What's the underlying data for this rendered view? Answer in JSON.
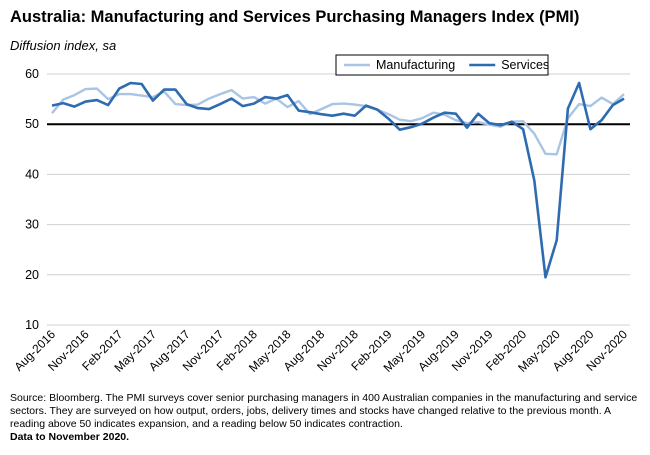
{
  "chart_data": {
    "type": "line",
    "title": "Australia:  Manufacturing and Services Purchasing Managers Index (PMI)",
    "subtitle": "Diffusion index, sa",
    "categories": [
      "Aug-2016",
      null,
      null,
      "Nov-2016",
      null,
      null,
      "Feb-2017",
      null,
      null,
      "May-2017",
      null,
      null,
      "Aug-2017",
      null,
      null,
      "Nov-2017",
      null,
      null,
      "Feb-2018",
      null,
      null,
      "May-2018",
      null,
      null,
      "Aug-2018",
      null,
      null,
      "Nov-2018",
      null,
      null,
      "Feb-2019",
      null,
      null,
      "May-2019",
      null,
      null,
      "Aug-2019",
      null,
      null,
      "Nov-2019",
      null,
      null,
      "Feb-2020",
      null,
      null,
      "May-2020",
      null,
      null,
      "Aug-2020",
      null,
      null,
      "Nov-2020"
    ],
    "series": [
      {
        "name": "Manufacturing",
        "color": "#a9c4e4",
        "values": [
          52.2,
          54.9,
          55.8,
          57.0,
          57.1,
          55.0,
          56.0,
          56.0,
          55.7,
          55.4,
          56.5,
          54.0,
          53.8,
          53.9,
          55.1,
          56.0,
          56.8,
          55.1,
          55.4,
          54.1,
          55.1,
          53.4,
          54.6,
          52.0,
          53.0,
          54.0,
          54.1,
          53.9,
          53.6,
          52.9,
          52.0,
          50.9,
          50.6,
          51.2,
          52.3,
          51.9,
          50.8,
          50.2,
          50.4,
          49.9,
          49.5,
          50.5,
          50.6,
          48.1,
          44.1,
          44.0,
          51.2,
          54.0,
          53.6,
          55.3,
          54.0,
          56.0
        ]
      },
      {
        "name": "Services",
        "color": "#2e6bb0",
        "values": [
          53.7,
          54.2,
          53.5,
          54.5,
          54.8,
          53.8,
          57.1,
          58.2,
          58.0,
          54.7,
          56.9,
          56.9,
          54.0,
          53.2,
          53.0,
          54.0,
          55.1,
          53.6,
          54.1,
          55.4,
          55.1,
          55.8,
          52.7,
          52.4,
          52.0,
          51.7,
          52.1,
          51.7,
          53.7,
          52.9,
          51.1,
          48.9,
          49.4,
          50.1,
          51.3,
          52.3,
          52.1,
          49.3,
          52.1,
          50.2,
          49.8,
          50.5,
          49.0,
          38.8,
          19.5,
          26.9,
          53.1,
          58.2,
          49.0,
          50.8,
          53.8,
          55.1
        ]
      }
    ],
    "ylim": [
      10,
      60
    ],
    "yticks": [
      10,
      20,
      30,
      40,
      50,
      60
    ],
    "grid": true,
    "reference_line": 50,
    "legend": "top-right",
    "source": "Source: Bloomberg.  The PMI surveys cover senior purchasing managers in 400 Australian companies in the manufacturing and service sectors.  They are surveyed on how output, orders, jobs, delivery times and stocks have changed relative to the previous month.  A reading above 50 indicates expansion, and a reading below 50 indicates contraction.",
    "data_note": "Data to November 2020."
  }
}
